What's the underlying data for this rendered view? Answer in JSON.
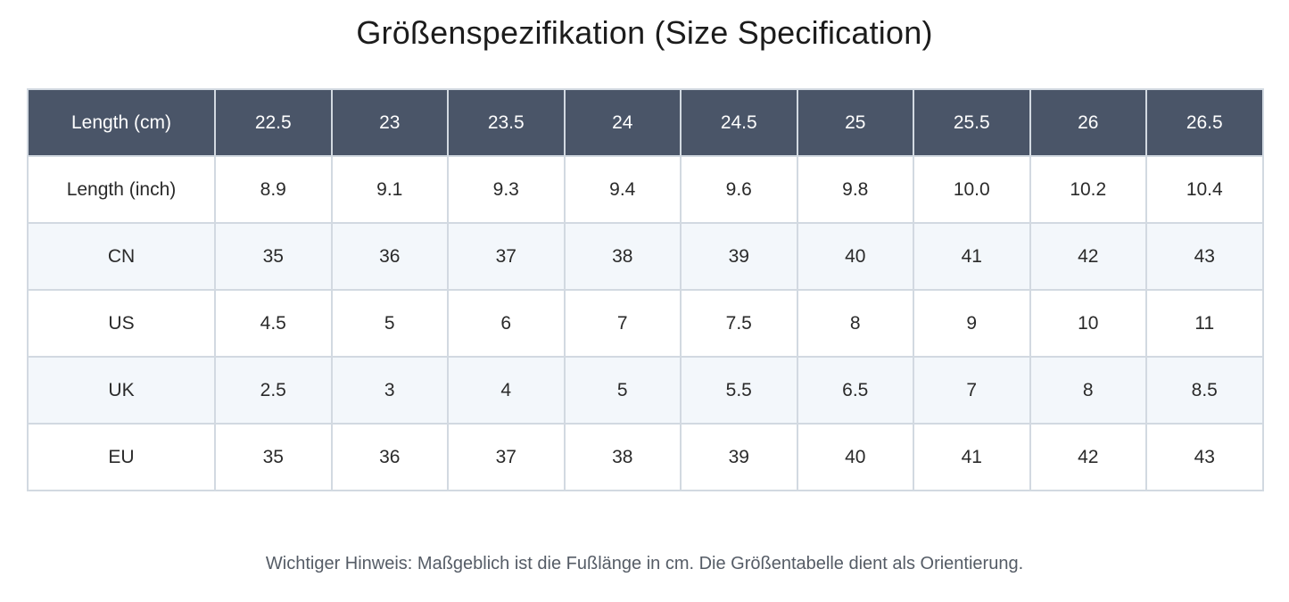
{
  "title": "Größenspezifikation (Size Specification)",
  "table": {
    "header": {
      "label": "Length (cm)",
      "values": [
        "22.5",
        "23",
        "23.5",
        "24",
        "24.5",
        "25",
        "25.5",
        "26",
        "26.5"
      ]
    },
    "rows": [
      {
        "label": "Length (inch)",
        "values": [
          "8.9",
          "9.1",
          "9.3",
          "9.4",
          "9.6",
          "9.8",
          "10.0",
          "10.2",
          "10.4"
        ]
      },
      {
        "label": "CN",
        "values": [
          "35",
          "36",
          "37",
          "38",
          "39",
          "40",
          "41",
          "42",
          "43"
        ]
      },
      {
        "label": "US",
        "values": [
          "4.5",
          "5",
          "6",
          "7",
          "7.5",
          "8",
          "9",
          "10",
          "11"
        ]
      },
      {
        "label": "UK",
        "values": [
          "2.5",
          "3",
          "4",
          "5",
          "5.5",
          "6.5",
          "7",
          "8",
          "8.5"
        ]
      },
      {
        "label": "EU",
        "values": [
          "35",
          "36",
          "37",
          "38",
          "39",
          "40",
          "41",
          "42",
          "43"
        ]
      }
    ]
  },
  "footnote": "Wichtiger Hinweis: Maßgeblich ist die Fußlänge in cm. Die Größentabelle dient als Orientierung.",
  "colors": {
    "header_bg": "#4a5568",
    "header_text": "#ffffff",
    "grid_line": "#d2d9e1",
    "row_tint": "#f3f7fb"
  }
}
